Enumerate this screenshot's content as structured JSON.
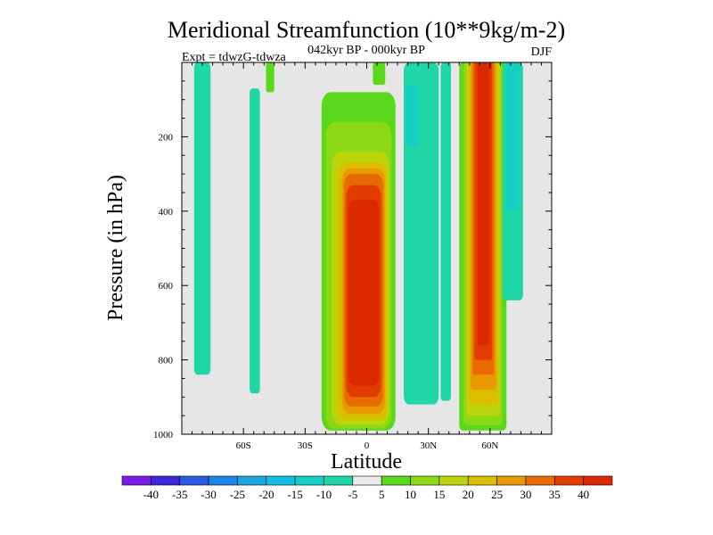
{
  "chart_data": {
    "type": "heatmap",
    "title": "Meridional Streamfunction (10**9kg/m-2)",
    "subtitle": "042kyr BP - 000kyr BP",
    "left_label": "Expt = tdwzG-tdwza",
    "right_label": "DJF",
    "xlabel": "Latitude",
    "ylabel": "Pressure (in hPa)",
    "x_range": [
      -90,
      90
    ],
    "y_range": [
      0,
      1000
    ],
    "y_axis_inverted": true,
    "x_ticks": [
      {
        "value": -60,
        "label": "60S"
      },
      {
        "value": -30,
        "label": "30S"
      },
      {
        "value": 0,
        "label": "0"
      },
      {
        "value": 30,
        "label": "30N"
      },
      {
        "value": 60,
        "label": "60N"
      }
    ],
    "y_ticks": [
      {
        "value": 200,
        "label": "200"
      },
      {
        "value": 400,
        "label": "400"
      },
      {
        "value": 600,
        "label": "600"
      },
      {
        "value": 800,
        "label": "800"
      },
      {
        "value": 1000,
        "label": "1000"
      }
    ],
    "background_color": "#e6e6e6",
    "colorbar": {
      "levels": [
        "-40",
        "-35",
        "-30",
        "-25",
        "-20",
        "-15",
        "-10",
        "-5",
        "5",
        "10",
        "15",
        "20",
        "25",
        "30",
        "35",
        "40"
      ],
      "colors": [
        "#7a1ce6",
        "#3c28d8",
        "#2a5ae0",
        "#1f82e8",
        "#1aa6e0",
        "#14bede",
        "#16cfc4",
        "#1ed6a6",
        "#ebebeb",
        "#5ad81c",
        "#8cd814",
        "#bcd40c",
        "#dcbe00",
        "#e89800",
        "#e86a00",
        "#e23c00",
        "#dc2800"
      ]
    },
    "regions": [
      {
        "value": 5,
        "lat": [
          -22,
          14
        ],
        "p": [
          80,
          990
        ],
        "r": 10
      },
      {
        "value": 10,
        "lat": [
          -20,
          12
        ],
        "p": [
          160,
          985
        ],
        "r": 10
      },
      {
        "value": 15,
        "lat": [
          -17,
          11
        ],
        "p": [
          240,
          975
        ],
        "r": 10
      },
      {
        "value": 20,
        "lat": [
          -14,
          10
        ],
        "p": [
          270,
          960
        ],
        "r": 9
      },
      {
        "value": 25,
        "lat": [
          -12,
          9
        ],
        "p": [
          285,
          945
        ],
        "r": 9
      },
      {
        "value": 30,
        "lat": [
          -11,
          8
        ],
        "p": [
          300,
          925
        ],
        "r": 8
      },
      {
        "value": 35,
        "lat": [
          -10,
          7
        ],
        "p": [
          330,
          900
        ],
        "r": 8
      },
      {
        "value": 40,
        "lat": [
          -9,
          6
        ],
        "p": [
          370,
          870
        ],
        "r": 7
      },
      {
        "value": 5,
        "lat": [
          45,
          68
        ],
        "p": [
          0,
          990
        ],
        "r": 4
      },
      {
        "value": 10,
        "lat": [
          47,
          66
        ],
        "p": [
          0,
          975
        ],
        "r": 4
      },
      {
        "value": 15,
        "lat": [
          48.5,
          65
        ],
        "p": [
          0,
          950
        ],
        "r": 3
      },
      {
        "value": 20,
        "lat": [
          49.5,
          64
        ],
        "p": [
          0,
          920
        ],
        "r": 3
      },
      {
        "value": 25,
        "lat": [
          50.5,
          63
        ],
        "p": [
          0,
          880
        ],
        "r": 3
      },
      {
        "value": 30,
        "lat": [
          51.5,
          62
        ],
        "p": [
          0,
          840
        ],
        "r": 2
      },
      {
        "value": 35,
        "lat": [
          52.5,
          61
        ],
        "p": [
          0,
          800
        ],
        "r": 2
      },
      {
        "value": 40,
        "lat": [
          54,
          59.5
        ],
        "p": [
          0,
          760
        ],
        "r": 2
      },
      {
        "value": 5,
        "lat": [
          -49,
          -45
        ],
        "p": [
          0,
          80
        ],
        "r": 2
      },
      {
        "value": 5,
        "lat": [
          3,
          9
        ],
        "p": [
          0,
          60
        ],
        "r": 2
      },
      {
        "value": -5,
        "lat": [
          -84,
          -76
        ],
        "p": [
          0,
          840
        ],
        "r": 4
      },
      {
        "value": -5,
        "lat": [
          -57,
          -52
        ],
        "p": [
          70,
          890
        ],
        "r": 3
      },
      {
        "value": -5,
        "lat": [
          18,
          35
        ],
        "p": [
          0,
          920
        ],
        "r": 6
      },
      {
        "value": -5,
        "lat": [
          36,
          41
        ],
        "p": [
          0,
          910
        ],
        "r": 3
      },
      {
        "value": -5,
        "lat": [
          66,
          76
        ],
        "p": [
          0,
          640
        ],
        "r": 4
      },
      {
        "value": -10,
        "lat": [
          19,
          25
        ],
        "p": [
          60,
          230
        ],
        "r": 5
      },
      {
        "value": -10,
        "lat": [
          68,
          74
        ],
        "p": [
          0,
          400
        ],
        "r": 3
      }
    ]
  }
}
